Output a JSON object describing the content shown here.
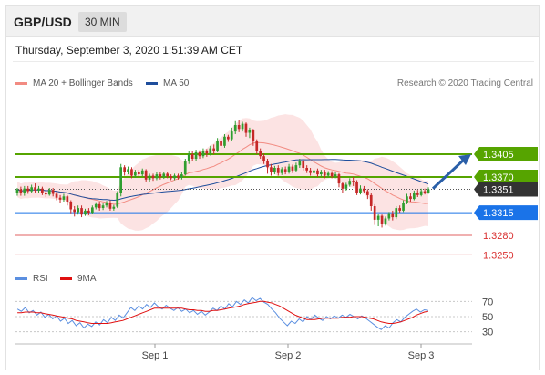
{
  "header": {
    "pair": "GBP/USD",
    "timeframe": "30 MIN"
  },
  "datetime": "Thursday, September 3, 2020 1:51:39 AM CET",
  "legend": {
    "ma20": {
      "label": "MA 20 + Bollinger Bands",
      "color": "#f28b82"
    },
    "ma50": {
      "label": "MA 50",
      "color": "#1f4e9c"
    }
  },
  "credit": "Research © 2020 Trading Central",
  "rsi_legend": {
    "rsi": {
      "label": "RSI",
      "color": "#5b8fe0"
    },
    "ma9": {
      "label": "9MA",
      "color": "#e01010"
    }
  },
  "colors": {
    "up": "#2f9e2f",
    "down": "#c62828",
    "support": "#1a73e8",
    "resistance": "#56a400",
    "red_level": "#e06060",
    "current": "#333333",
    "band": "#fbdede"
  },
  "chart_data": [
    {
      "type": "candlestick",
      "title": "GBP/USD",
      "timeframe": "30 MIN",
      "x_labels": [
        "Sep 1",
        "Sep 2",
        "Sep 3"
      ],
      "ylim": [
        1.3235,
        1.3495
      ],
      "current_price": "1.3351",
      "levels": [
        {
          "value": 1.3405,
          "label": "1.3405",
          "kind": "resistance"
        },
        {
          "value": 1.337,
          "label": "1.3370",
          "kind": "resistance"
        },
        {
          "value": 1.3351,
          "label": "1.3351",
          "kind": "current"
        },
        {
          "value": 1.3315,
          "label": "1.3315",
          "kind": "support"
        },
        {
          "value": 1.328,
          "label": "1.3280",
          "kind": "red"
        },
        {
          "value": 1.325,
          "label": "1.3250",
          "kind": "red"
        }
      ],
      "forecast_arrow": {
        "from": 1.3352,
        "to": 1.3405
      },
      "candles": [
        [
          1.3346,
          1.3351,
          1.3341,
          1.3353
        ],
        [
          1.3351,
          1.3345,
          1.3341,
          1.3355
        ],
        [
          1.3345,
          1.3352,
          1.3341,
          1.3356
        ],
        [
          1.3352,
          1.3348,
          1.3344,
          1.3356
        ],
        [
          1.3348,
          1.3354,
          1.3345,
          1.3358
        ],
        [
          1.3354,
          1.3349,
          1.3346,
          1.336
        ],
        [
          1.3349,
          1.3352,
          1.3345,
          1.3356
        ],
        [
          1.3352,
          1.3346,
          1.3342,
          1.3355
        ],
        [
          1.3346,
          1.3343,
          1.3339,
          1.3349
        ],
        [
          1.3343,
          1.335,
          1.3341,
          1.3353
        ],
        [
          1.335,
          1.3344,
          1.334,
          1.3353
        ],
        [
          1.3344,
          1.3338,
          1.3334,
          1.3347
        ],
        [
          1.3338,
          1.3335,
          1.333,
          1.3342
        ],
        [
          1.3335,
          1.334,
          1.3332,
          1.3344
        ],
        [
          1.334,
          1.3332,
          1.3326,
          1.3342
        ],
        [
          1.3332,
          1.332,
          1.3314,
          1.3334
        ],
        [
          1.332,
          1.3316,
          1.3309,
          1.3325
        ],
        [
          1.3316,
          1.3322,
          1.3312,
          1.3326
        ],
        [
          1.3322,
          1.3312,
          1.3308,
          1.3326
        ],
        [
          1.3312,
          1.3318,
          1.331,
          1.3321
        ],
        [
          1.3318,
          1.3315,
          1.3311,
          1.3322
        ],
        [
          1.3315,
          1.3323,
          1.3313,
          1.3326
        ],
        [
          1.3323,
          1.3328,
          1.332,
          1.3331
        ],
        [
          1.3328,
          1.3322,
          1.3318,
          1.3332
        ],
        [
          1.3322,
          1.3326,
          1.3319,
          1.3329
        ],
        [
          1.3326,
          1.333,
          1.3323,
          1.3333
        ],
        [
          1.333,
          1.3321,
          1.3318,
          1.3334
        ],
        [
          1.3321,
          1.3324,
          1.3318,
          1.3327
        ],
        [
          1.3324,
          1.3345,
          1.3322,
          1.3348
        ],
        [
          1.3345,
          1.3385,
          1.334,
          1.339
        ],
        [
          1.3385,
          1.3378,
          1.3372,
          1.3388
        ],
        [
          1.3378,
          1.3382,
          1.3374,
          1.3386
        ],
        [
          1.3382,
          1.3372,
          1.3368,
          1.3385
        ],
        [
          1.3372,
          1.3378,
          1.3369,
          1.3381
        ],
        [
          1.3378,
          1.3374,
          1.337,
          1.3381
        ],
        [
          1.3374,
          1.338,
          1.3371,
          1.3383
        ],
        [
          1.338,
          1.3366,
          1.3363,
          1.3382
        ],
        [
          1.3366,
          1.3372,
          1.3363,
          1.3375
        ],
        [
          1.3372,
          1.3368,
          1.3364,
          1.3375
        ],
        [
          1.3368,
          1.3374,
          1.3365,
          1.3377
        ],
        [
          1.3374,
          1.337,
          1.3366,
          1.3377
        ],
        [
          1.337,
          1.3375,
          1.3367,
          1.3378
        ],
        [
          1.3375,
          1.3371,
          1.3368,
          1.3378
        ],
        [
          1.3371,
          1.3368,
          1.3365,
          1.3374
        ],
        [
          1.3368,
          1.3372,
          1.3365,
          1.3375
        ],
        [
          1.3372,
          1.3369,
          1.3366,
          1.3375
        ],
        [
          1.3369,
          1.3374,
          1.3366,
          1.3377
        ],
        [
          1.3374,
          1.3395,
          1.3372,
          1.3398
        ],
        [
          1.3395,
          1.3405,
          1.339,
          1.341
        ],
        [
          1.3405,
          1.3398,
          1.3394,
          1.341
        ],
        [
          1.3398,
          1.3408,
          1.3395,
          1.3412
        ],
        [
          1.3408,
          1.3402,
          1.3398,
          1.3411
        ],
        [
          1.3402,
          1.341,
          1.3399,
          1.3414
        ],
        [
          1.341,
          1.3406,
          1.3401,
          1.3413
        ],
        [
          1.3406,
          1.3414,
          1.3403,
          1.3418
        ],
        [
          1.3414,
          1.341,
          1.3405,
          1.342
        ],
        [
          1.341,
          1.3425,
          1.3408,
          1.343
        ],
        [
          1.3425,
          1.3418,
          1.3413,
          1.3428
        ],
        [
          1.3418,
          1.3432,
          1.3415,
          1.3436
        ],
        [
          1.3432,
          1.3428,
          1.3424,
          1.3435
        ],
        [
          1.3428,
          1.344,
          1.3425,
          1.3446
        ],
        [
          1.344,
          1.345,
          1.3436,
          1.3456
        ],
        [
          1.345,
          1.3444,
          1.3439,
          1.3458
        ],
        [
          1.3444,
          1.3452,
          1.344,
          1.3455
        ],
        [
          1.3452,
          1.3438,
          1.3432,
          1.3454
        ],
        [
          1.3438,
          1.3442,
          1.343,
          1.3446
        ],
        [
          1.3442,
          1.3425,
          1.3418,
          1.3444
        ],
        [
          1.3425,
          1.341,
          1.3405,
          1.3428
        ],
        [
          1.341,
          1.3402,
          1.3398,
          1.3414
        ],
        [
          1.3402,
          1.3395,
          1.339,
          1.3406
        ],
        [
          1.3395,
          1.3385,
          1.3375,
          1.3398
        ],
        [
          1.3385,
          1.3378,
          1.3372,
          1.339
        ],
        [
          1.3378,
          1.3384,
          1.3374,
          1.3387
        ],
        [
          1.3384,
          1.3376,
          1.3372,
          1.3388
        ],
        [
          1.3376,
          1.3382,
          1.3373,
          1.3385
        ],
        [
          1.3382,
          1.3378,
          1.3374,
          1.3386
        ],
        [
          1.3378,
          1.3386,
          1.3375,
          1.339
        ],
        [
          1.3386,
          1.338,
          1.3376,
          1.3389
        ],
        [
          1.338,
          1.3388,
          1.3377,
          1.3392
        ],
        [
          1.3388,
          1.3394,
          1.3384,
          1.3398
        ],
        [
          1.3394,
          1.3384,
          1.338,
          1.3397
        ],
        [
          1.3384,
          1.338,
          1.3376,
          1.3388
        ],
        [
          1.338,
          1.3376,
          1.3372,
          1.3384
        ],
        [
          1.3376,
          1.338,
          1.3373,
          1.3384
        ],
        [
          1.338,
          1.3374,
          1.337,
          1.3383
        ],
        [
          1.3374,
          1.3378,
          1.3371,
          1.3381
        ],
        [
          1.3378,
          1.3372,
          1.3368,
          1.3381
        ],
        [
          1.3372,
          1.3376,
          1.3369,
          1.3379
        ],
        [
          1.3376,
          1.3371,
          1.3368,
          1.3379
        ],
        [
          1.3371,
          1.3374,
          1.3368,
          1.3377
        ],
        [
          1.3374,
          1.336,
          1.3354,
          1.3376
        ],
        [
          1.336,
          1.3352,
          1.3346,
          1.3362
        ],
        [
          1.3352,
          1.3358,
          1.3349,
          1.3361
        ],
        [
          1.3358,
          1.3364,
          1.3355,
          1.3368
        ],
        [
          1.3364,
          1.3362,
          1.3356,
          1.337
        ],
        [
          1.3362,
          1.3346,
          1.3342,
          1.3365
        ],
        [
          1.3346,
          1.3352,
          1.3343,
          1.3357
        ],
        [
          1.3352,
          1.3348,
          1.3345,
          1.3356
        ],
        [
          1.3348,
          1.3342,
          1.3336,
          1.3351
        ],
        [
          1.3342,
          1.3325,
          1.3318,
          1.3345
        ],
        [
          1.3325,
          1.3304,
          1.3296,
          1.3328
        ],
        [
          1.3304,
          1.331,
          1.3294,
          1.3313
        ],
        [
          1.331,
          1.3298,
          1.3292,
          1.3312
        ],
        [
          1.3298,
          1.3306,
          1.3295,
          1.3309
        ],
        [
          1.3306,
          1.3314,
          1.3303,
          1.3316
        ],
        [
          1.3314,
          1.3308,
          1.3303,
          1.3318
        ],
        [
          1.3308,
          1.3322,
          1.3305,
          1.3325
        ],
        [
          1.3322,
          1.3318,
          1.3315,
          1.3326
        ],
        [
          1.3318,
          1.333,
          1.3316,
          1.3334
        ],
        [
          1.333,
          1.334,
          1.3328,
          1.3344
        ],
        [
          1.334,
          1.3336,
          1.3332,
          1.3345
        ],
        [
          1.3336,
          1.3346,
          1.3334,
          1.3349
        ],
        [
          1.3346,
          1.3342,
          1.3339,
          1.335
        ],
        [
          1.3342,
          1.3348,
          1.334,
          1.3352
        ],
        [
          1.3348,
          1.3346,
          1.3343,
          1.3352
        ],
        [
          1.3346,
          1.3351,
          1.3344,
          1.3354
        ]
      ]
    },
    {
      "type": "line",
      "title": "RSI",
      "y_ticks": [
        70,
        50,
        30
      ],
      "ylim": [
        20,
        80
      ],
      "series": [
        {
          "name": "RSI",
          "values": [
            60,
            57,
            62,
            55,
            58,
            52,
            56,
            49,
            53,
            47,
            51,
            44,
            48,
            41,
            45,
            38,
            42,
            35,
            40,
            37,
            43,
            39,
            46,
            42,
            49,
            45,
            52,
            48,
            55,
            62,
            58,
            64,
            60,
            66,
            62,
            68,
            63,
            60,
            65,
            61,
            58,
            62,
            57,
            60,
            55,
            58,
            53,
            57,
            52,
            56,
            61,
            58,
            64,
            60,
            67,
            63,
            70,
            66,
            72,
            68,
            75,
            71,
            74,
            69,
            66,
            60,
            55,
            48,
            43,
            38,
            44,
            41,
            47,
            43,
            50,
            46,
            52,
            48,
            45,
            50,
            47,
            51,
            48,
            52,
            49,
            53,
            50,
            47,
            51,
            48,
            44,
            40,
            36,
            33,
            38,
            35,
            42,
            46,
            43,
            49,
            53,
            57,
            60,
            56,
            59,
            58
          ]
        },
        {
          "name": "9MA",
          "values": [
            55,
            55,
            56,
            56,
            56,
            55,
            55,
            54,
            53,
            52,
            51,
            50,
            49,
            48,
            47,
            45,
            44,
            43,
            42,
            41,
            41,
            41,
            41,
            41,
            42,
            43,
            44,
            45,
            47,
            49,
            51,
            53,
            55,
            57,
            59,
            61,
            61,
            61,
            61,
            61,
            61,
            61,
            61,
            60,
            59,
            59,
            58,
            58,
            57,
            57,
            58,
            58,
            59,
            60,
            61,
            62,
            63,
            64,
            66,
            67,
            68,
            69,
            70,
            70,
            69,
            68,
            66,
            64,
            61,
            58,
            55,
            52,
            50,
            48,
            46,
            46,
            46,
            47,
            48,
            48,
            48,
            48,
            48,
            49,
            49,
            49,
            50,
            50,
            50,
            49,
            48,
            47,
            45,
            43,
            42,
            41,
            41,
            42,
            43,
            45,
            47,
            49,
            52,
            54,
            56,
            57
          ]
        }
      ]
    }
  ]
}
